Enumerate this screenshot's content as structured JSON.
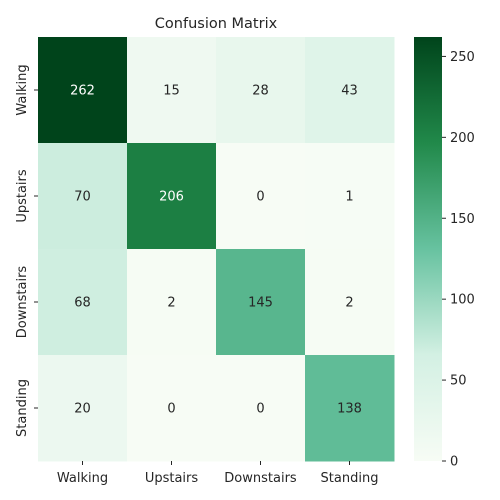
{
  "chart_data": {
    "type": "heatmap",
    "title": "Confusion Matrix",
    "xlabel": "",
    "ylabel": "",
    "x_categories": [
      "Walking",
      "Upstairs",
      "Downstairs",
      "Standing"
    ],
    "y_categories": [
      "Walking",
      "Upstairs",
      "Downstairs",
      "Standing"
    ],
    "values": [
      [
        262,
        15,
        28,
        43
      ],
      [
        70,
        206,
        0,
        1
      ],
      [
        68,
        2,
        145,
        2
      ],
      [
        20,
        0,
        0,
        138
      ]
    ],
    "color_range": [
      0,
      262
    ],
    "colormap": "Greens",
    "colorbar_ticks": [
      0,
      50,
      100,
      150,
      200,
      250
    ],
    "grid": false
  }
}
